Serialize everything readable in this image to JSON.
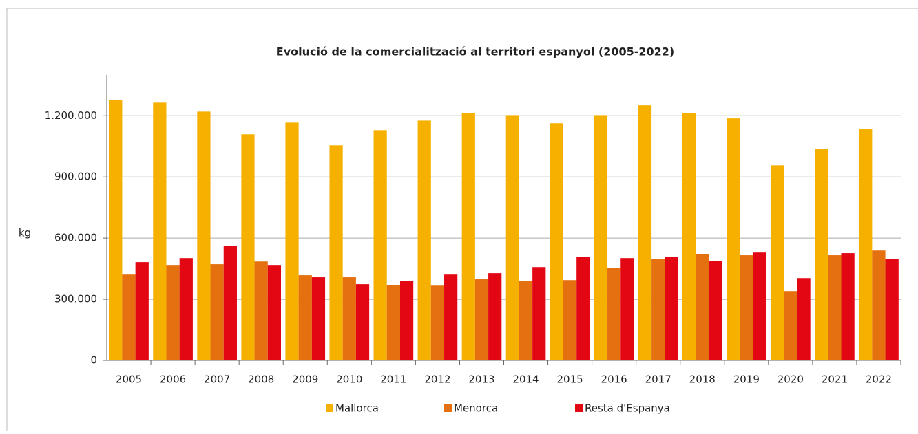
{
  "chart_data": {
    "type": "bar",
    "title": "Evolució de la comercialització al territori espanyol (2005-2022)",
    "y_label": "kg",
    "categories": [
      "2005",
      "2006",
      "2007",
      "2008",
      "2009",
      "2010",
      "2011",
      "2012",
      "2013",
      "2014",
      "2015",
      "2016",
      "2017",
      "2018",
      "2019",
      "2020",
      "2021",
      "2022"
    ],
    "series": [
      {
        "name": "Mallorca",
        "color": "#f5b000",
        "values": [
          1278000,
          1264000,
          1220000,
          1109000,
          1166000,
          1055000,
          1129000,
          1176000,
          1213000,
          1203000,
          1163000,
          1203000,
          1251000,
          1213000,
          1187000,
          957000,
          1038000,
          1136000
        ]
      },
      {
        "name": "Menorca",
        "color": "#e5700f",
        "values": [
          421000,
          465000,
          472000,
          485000,
          418000,
          408000,
          371000,
          367000,
          398000,
          391000,
          394000,
          455000,
          496000,
          522000,
          516000,
          340000,
          516000,
          539000
        ]
      },
      {
        "name": "Resta d'Espanya",
        "color": "#e30613",
        "values": [
          482000,
          502000,
          560000,
          465000,
          408000,
          374000,
          388000,
          421000,
          428000,
          458000,
          506000,
          502000,
          506000,
          489000,
          529000,
          404000,
          526000,
          496000
        ]
      }
    ],
    "ylim": [
      0,
      1400000
    ],
    "yticks": [
      0,
      {
        "value": 300000,
        "label": "300.000"
      },
      {
        "value": 600000,
        "label": "600.000"
      },
      {
        "value": 900000,
        "label": "900.000"
      },
      {
        "value": 1200000,
        "label": "1.200.000"
      }
    ],
    "grid": true,
    "legend": "bottom"
  }
}
